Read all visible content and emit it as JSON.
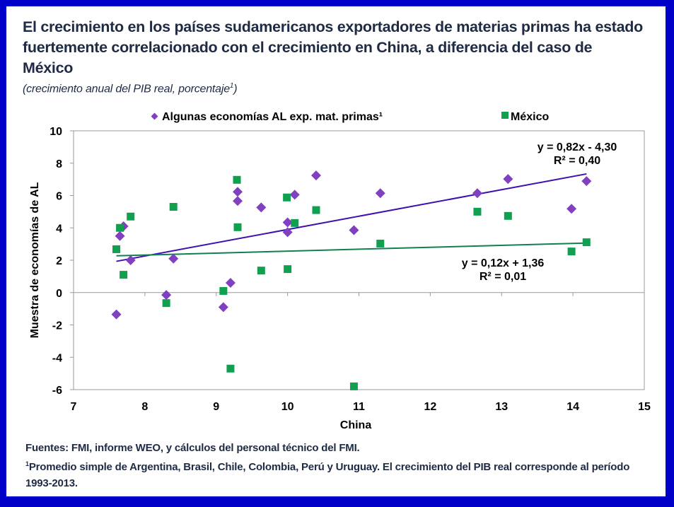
{
  "slide": {
    "title": "El crecimiento en los países sudamericanos exportadores de materias primas ha estado fuertemente correlacionado con el crecimiento en China, a diferencia del caso de México",
    "subtitle": "(crecimiento anual del PIB real, porcentaje",
    "subtitle_sup": "1",
    "subtitle_close": ")",
    "footer": {
      "sources": "Fuentes: FMI, informe WEO, y cálculos del personal técnico del FMI.",
      "note_sup": "1",
      "note": "Promedio simple de Argentina, Brasil, Chile, Colombia, Perú y Uruguay. El  crecimiento del PIB real corresponde al período 1993-2013."
    },
    "colors": {
      "border": "#0000c8",
      "series_al": "#8040c0",
      "series_mexico": "#10a050",
      "trend_al": "#4010b0",
      "trend_mexico": "#108050"
    }
  },
  "chart_data": {
    "type": "scatter",
    "title": "",
    "xlabel": "China",
    "ylabel": "Muestra de economías de AL",
    "xlim": [
      7,
      15
    ],
    "ylim": [
      -6,
      10
    ],
    "xticks": [
      7,
      8,
      9,
      10,
      11,
      12,
      13,
      14,
      15
    ],
    "yticks": [
      -6,
      -4,
      -2,
      0,
      2,
      4,
      6,
      8,
      10
    ],
    "grid": false,
    "legend_position": "top",
    "series": [
      {
        "name": "Algunas economías AL exp. mat. primas¹",
        "marker": "diamond",
        "color": "#8040c0",
        "points": [
          [
            7.6,
            -1.35
          ],
          [
            7.65,
            3.5
          ],
          [
            7.7,
            4.1
          ],
          [
            7.8,
            2.0
          ],
          [
            8.3,
            -0.15
          ],
          [
            8.4,
            2.1
          ],
          [
            9.1,
            -0.9
          ],
          [
            9.2,
            0.6
          ],
          [
            9.3,
            6.23
          ],
          [
            9.3,
            5.66
          ],
          [
            9.63,
            5.26
          ],
          [
            10.0,
            4.34
          ],
          [
            10.0,
            3.73
          ],
          [
            10.1,
            6.05
          ],
          [
            10.4,
            7.24
          ],
          [
            10.93,
            3.86
          ],
          [
            11.3,
            6.14
          ],
          [
            12.66,
            6.14
          ],
          [
            13.09,
            7.02
          ],
          [
            13.98,
            5.18
          ],
          [
            14.19,
            6.89
          ]
        ],
        "trendline": {
          "equation": "y = 0,82x - 4,30",
          "r2": "R² = 0,40",
          "slope": 0.82,
          "intercept": -4.3,
          "x_range": [
            7.6,
            14.19
          ]
        }
      },
      {
        "name": "México",
        "marker": "square",
        "color": "#10a050",
        "points": [
          [
            7.6,
            2.68
          ],
          [
            7.65,
            4.0
          ],
          [
            7.7,
            1.1
          ],
          [
            7.8,
            4.7
          ],
          [
            8.3,
            -0.65
          ],
          [
            8.4,
            5.3
          ],
          [
            9.1,
            0.1
          ],
          [
            9.2,
            -4.7
          ],
          [
            9.29,
            6.97
          ],
          [
            9.3,
            4.04
          ],
          [
            9.63,
            1.36
          ],
          [
            9.99,
            5.88
          ],
          [
            10.0,
            1.45
          ],
          [
            10.1,
            4.3
          ],
          [
            10.4,
            5.1
          ],
          [
            10.93,
            -5.8
          ],
          [
            11.3,
            3.03
          ],
          [
            12.66,
            5.0
          ],
          [
            13.09,
            4.74
          ],
          [
            13.98,
            2.54
          ],
          [
            14.19,
            3.11
          ]
        ],
        "trendline": {
          "equation": "y = 0,12x + 1,36",
          "r2": "R² = 0,01",
          "slope": 0.12,
          "intercept": 1.36,
          "x_range": [
            7.6,
            14.19
          ]
        }
      }
    ]
  }
}
